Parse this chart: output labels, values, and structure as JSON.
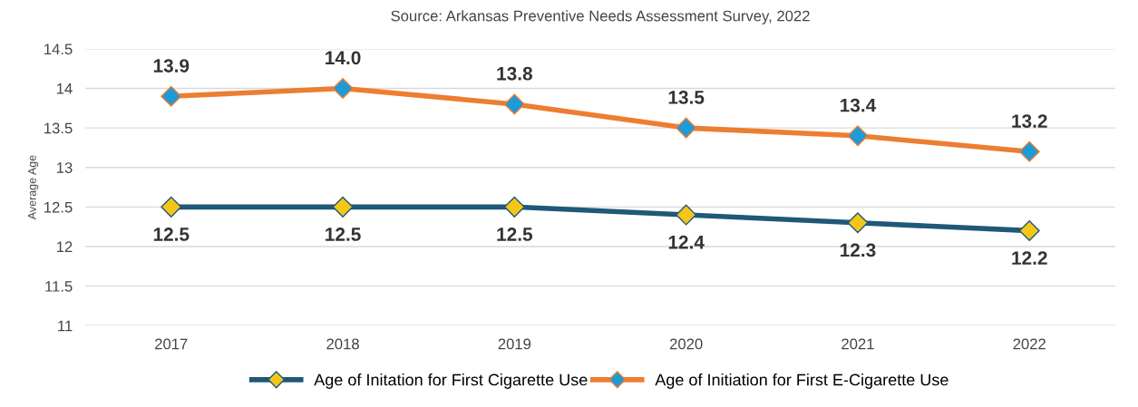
{
  "chart_data": {
    "type": "line",
    "title": "Source: Arkansas Preventive Needs Assessment Survey, 2022",
    "ylabel": "Average Age",
    "categories": [
      "2017",
      "2018",
      "2019",
      "2020",
      "2021",
      "2022"
    ],
    "series": [
      {
        "name": "Age of Initation for First Cigarette Use",
        "color": "#1f5878",
        "colors": [
          "#f5c518",
          "#f5c518",
          "#f5c518",
          "#f5c518",
          "#f5c518",
          "#f5c518"
        ],
        "values": [
          12.5,
          12.5,
          12.5,
          12.4,
          12.3,
          12.2
        ],
        "value_labels": [
          "12.5",
          "12.5",
          "12.5",
          "12.4",
          "12.3",
          "12.2"
        ]
      },
      {
        "name": "Age of Initiation for First E-Cigarette Use",
        "color": "#ed7d31",
        "colors": [
          "#1d9bd7",
          "#1d9bd7",
          "#1d9bd7",
          "#1d9bd7",
          "#1d9bd7",
          "#1d9bd7"
        ],
        "values": [
          13.9,
          14.0,
          13.8,
          13.5,
          13.4,
          13.2
        ],
        "value_labels": [
          "13.9",
          "14.0",
          "13.8",
          "13.5",
          "13.4",
          "13.2"
        ]
      }
    ],
    "ylim": [
      11,
      14.5
    ],
    "yticks": [
      11,
      11.5,
      12,
      12.5,
      13,
      13.5,
      14,
      14.5
    ],
    "grid": "y",
    "legend": "bottom",
    "marker": "diamond",
    "line_style": "solid"
  }
}
